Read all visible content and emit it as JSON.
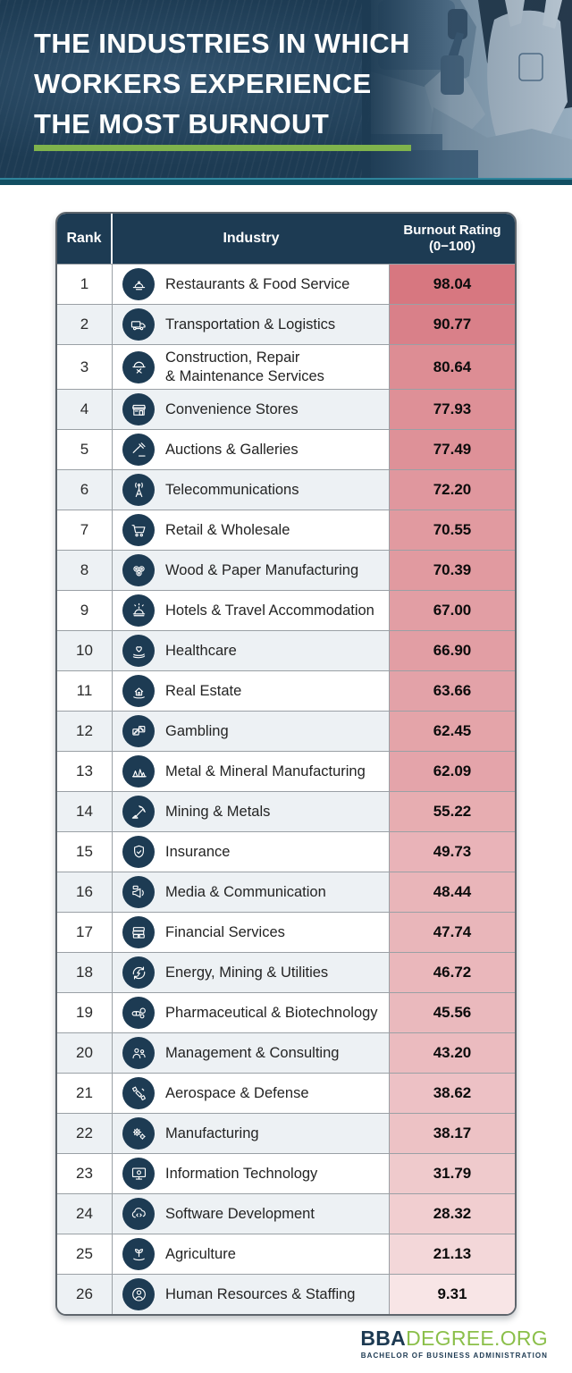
{
  "header": {
    "title_lines": [
      "THE INDUSTRIES IN WHICH",
      "WORKERS EXPERIENCE",
      "THE MOST BURNOUT"
    ]
  },
  "table": {
    "columns": {
      "rank": "Rank",
      "industry": "Industry",
      "rating_line1": "Burnout Rating",
      "rating_line2": "(0−100)"
    },
    "rows": [
      {
        "rank": "1",
        "industry": "Restaurants & Food Service",
        "icon": "food-service",
        "rating": "98.04",
        "value": 98.04
      },
      {
        "rank": "2",
        "industry": "Transportation & Logistics",
        "icon": "truck",
        "rating": "90.77",
        "value": 90.77
      },
      {
        "rank": "3",
        "industry": "Construction, Repair\n& Maintenance Services",
        "icon": "construction-helmet",
        "rating": "80.64",
        "value": 80.64
      },
      {
        "rank": "4",
        "industry": "Convenience Stores",
        "icon": "storefront",
        "rating": "77.93",
        "value": 77.93
      },
      {
        "rank": "5",
        "industry": "Auctions & Galleries",
        "icon": "auction-gavel",
        "rating": "77.49",
        "value": 77.49
      },
      {
        "rank": "6",
        "industry": "Telecommunications",
        "icon": "antenna-tower",
        "rating": "72.20",
        "value": 72.2
      },
      {
        "rank": "7",
        "industry": "Retail & Wholesale",
        "icon": "shopping-cart",
        "rating": "70.55",
        "value": 70.55
      },
      {
        "rank": "8",
        "industry": "Wood & Paper Manufacturing",
        "icon": "wood-logs",
        "rating": "70.39",
        "value": 70.39
      },
      {
        "rank": "9",
        "industry": "Hotels & Travel Accommodation",
        "icon": "service-bell",
        "rating": "67.00",
        "value": 67.0
      },
      {
        "rank": "10",
        "industry": "Healthcare",
        "icon": "health-hand-heart",
        "rating": "66.90",
        "value": 66.9
      },
      {
        "rank": "11",
        "industry": "Real Estate",
        "icon": "house-hand",
        "rating": "63.66",
        "value": 63.66
      },
      {
        "rank": "12",
        "industry": "Gambling",
        "icon": "dice",
        "rating": "62.45",
        "value": 62.45
      },
      {
        "rank": "13",
        "industry": "Metal & Mineral Manufacturing",
        "icon": "minerals-crystal",
        "rating": "62.09",
        "value": 62.09
      },
      {
        "rank": "14",
        "industry": "Mining & Metals",
        "icon": "pickaxe",
        "rating": "55.22",
        "value": 55.22
      },
      {
        "rank": "15",
        "industry": "Insurance",
        "icon": "shield-check",
        "rating": "49.73",
        "value": 49.73
      },
      {
        "rank": "16",
        "industry": "Media & Communication",
        "icon": "megaphone",
        "rating": "48.44",
        "value": 48.44
      },
      {
        "rank": "17",
        "industry": "Financial Services",
        "icon": "money-stack",
        "rating": "47.74",
        "value": 47.74
      },
      {
        "rank": "18",
        "industry": "Energy, Mining & Utilities",
        "icon": "energy-bolt-cycle",
        "rating": "46.72",
        "value": 46.72
      },
      {
        "rank": "19",
        "industry": "Pharmaceutical & Biotechnology",
        "icon": "pills",
        "rating": "45.56",
        "value": 45.56
      },
      {
        "rank": "20",
        "industry": "Management & Consulting",
        "icon": "people-group",
        "rating": "43.20",
        "value": 43.2
      },
      {
        "rank": "21",
        "industry": "Aerospace & Defense",
        "icon": "satellite",
        "rating": "38.62",
        "value": 38.62
      },
      {
        "rank": "22",
        "industry": "Manufacturing",
        "icon": "gears",
        "rating": "38.17",
        "value": 38.17
      },
      {
        "rank": "23",
        "industry": "Information Technology",
        "icon": "monitor-gear",
        "rating": "31.79",
        "value": 31.79
      },
      {
        "rank": "24",
        "industry": "Software Development",
        "icon": "cloud-code",
        "rating": "28.32",
        "value": 28.32
      },
      {
        "rank": "25",
        "industry": "Agriculture",
        "icon": "plant-hand",
        "rating": "21.13",
        "value": 21.13
      },
      {
        "rank": "26",
        "industry": "Human Resources & Staffing",
        "icon": "person-circle",
        "rating": "9.31",
        "value": 9.31
      }
    ]
  },
  "colors": {
    "navy": "#1d3b53",
    "green": "#7fb34c",
    "teal_band": "#124e62",
    "row_alt": "#edf1f4",
    "rating_high": "#d6757e",
    "rating_low": "#fbf1f1"
  },
  "footer": {
    "brand_bold": "BBA",
    "brand_rest": "DEGREE.ORG",
    "tagline": "BACHELOR OF BUSINESS ADMINISTRATION"
  },
  "chart_data": {
    "type": "table",
    "title": "The Industries in Which Workers Experience the Most Burnout",
    "columns": [
      "Rank",
      "Industry",
      "Burnout Rating (0−100)"
    ],
    "categories": [
      "Restaurants & Food Service",
      "Transportation & Logistics",
      "Construction, Repair & Maintenance Services",
      "Convenience Stores",
      "Auctions & Galleries",
      "Telecommunications",
      "Retail & Wholesale",
      "Wood & Paper Manufacturing",
      "Hotels & Travel Accommodation",
      "Healthcare",
      "Real Estate",
      "Gambling",
      "Metal & Mineral Manufacturing",
      "Mining & Metals",
      "Insurance",
      "Media & Communication",
      "Financial Services",
      "Energy, Mining & Utilities",
      "Pharmaceutical & Biotechnology",
      "Management & Consulting",
      "Aerospace & Defense",
      "Manufacturing",
      "Information Technology",
      "Software Development",
      "Agriculture",
      "Human Resources & Staffing"
    ],
    "values": [
      98.04,
      90.77,
      80.64,
      77.93,
      77.49,
      72.2,
      70.55,
      70.39,
      67.0,
      66.9,
      63.66,
      62.45,
      62.09,
      55.22,
      49.73,
      48.44,
      47.74,
      46.72,
      45.56,
      43.2,
      38.62,
      38.17,
      31.79,
      28.32,
      21.13,
      9.31
    ],
    "value_range": [
      0,
      100
    ],
    "color_encoding": "cell background interpolates #d6757e (100) to #fbf1f1 (0)"
  }
}
